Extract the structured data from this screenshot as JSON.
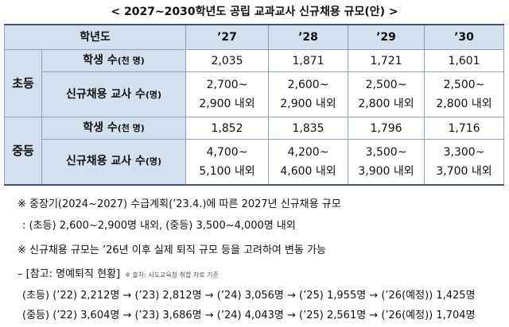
{
  "title": "< 2027~2030학년도 공립 교과교사 신규채용 규모(안) >",
  "table": {
    "header": [
      "학년도",
      "’27",
      "’28",
      "’29",
      "’30"
    ],
    "groups": [
      {
        "name": "초등",
        "rows": [
          {
            "label": "학생 수",
            "unit": "(천 명)",
            "cells": [
              [
                "2,035"
              ],
              [
                "1,871"
              ],
              [
                "1,721"
              ],
              [
                "1,601"
              ]
            ]
          },
          {
            "label": "신규채용 교사 수",
            "unit": "(명)",
            "cells": [
              [
                "2,700~",
                "2,900 내외"
              ],
              [
                "2,600~",
                "2,900 내외"
              ],
              [
                "2,500~",
                "2,800 내외"
              ],
              [
                "2,500~",
                "2,800 내외"
              ]
            ]
          }
        ]
      },
      {
        "name": "중등",
        "rows": [
          {
            "label": "학생 수",
            "unit": "(천 명)",
            "cells": [
              [
                "1,852"
              ],
              [
                "1,835"
              ],
              [
                "1,796"
              ],
              [
                "1,716"
              ]
            ]
          },
          {
            "label": "신규채용 교사 수",
            "unit": "(명)",
            "cells": [
              [
                "4,700~",
                "5,100 내외"
              ],
              [
                "4,200~",
                "4,600 내외"
              ],
              [
                "3,500~",
                "3,900 내외"
              ],
              [
                "3,300~",
                "3,700 내외"
              ]
            ]
          }
        ]
      }
    ]
  },
  "notes": [
    "※ 중장기(2024~2027) 수급계획(’23.4.)에 따른 2027년 신규채용 규모",
    ":  (초등) 2,600~2,900명 내외, (중등) 3,500~4,000명 내외",
    "※ 신규채용 규모는 ’26년 이후 실제 퇴직 규모 등을 고려하여 변동 가능"
  ],
  "reference": {
    "title": "– [참고: 명예퇴직 현황]",
    "source": "※ 출처: 시도교육청 취합 자료 기준",
    "rows": [
      "(초등) (’22) 2,212명 → (’23) 2,812명 → (’24) 3,056명 → (’25) 1,955명 → (’26(예정)) 1,425명",
      "(중등) (’22) 3,604명 → (’23) 3,686명 → (’24) 4,043명 → (’25) 2,561명 → (’26(예정)) 1,704명"
    ]
  }
}
